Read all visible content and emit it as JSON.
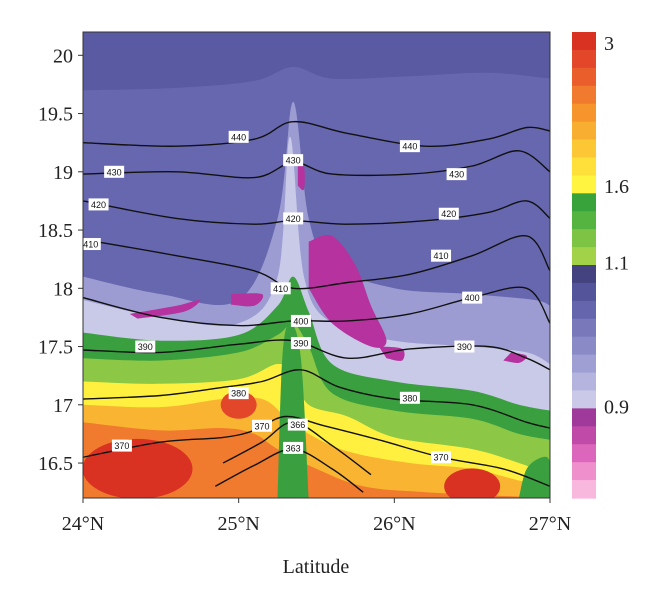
{
  "chart_data": {
    "type": "heatmap",
    "xlabel": "Latitude",
    "x_ticks": [
      "24°N",
      "25°N",
      "26°N",
      "27°N"
    ],
    "x_tick_values": [
      24,
      25,
      26,
      27
    ],
    "y_ticks": [
      "16.5",
      "17",
      "17.5",
      "18",
      "18.5",
      "19",
      "19.5",
      "20"
    ],
    "y_tick_values": [
      16.5,
      17,
      17.5,
      18,
      18.5,
      19,
      19.5,
      20
    ],
    "xlim": [
      24,
      27
    ],
    "ylim": [
      16.2,
      20.2
    ],
    "colorbar": {
      "tick_labels": [
        "3",
        "1.6",
        "1.1",
        "0.9"
      ],
      "tick_values": [
        3,
        1.6,
        1.1,
        0.9
      ],
      "bands": [
        "#d93223",
        "#e2472a",
        "#ea5e2c",
        "#f07a2d",
        "#f5952c",
        "#f8ae30",
        "#fbc734",
        "#ffe03a",
        "#fff43f",
        "#37a33a",
        "#55b33f",
        "#7ec444",
        "#a2d248",
        "#44437f",
        "#54549a",
        "#6565ad",
        "#7878bb",
        "#8a8ac7",
        "#9f9fd3",
        "#b4b4de",
        "#cacae8",
        "#a03a9a",
        "#c04aa8",
        "#dc66bb",
        "#ef8fcc",
        "#f8b8de"
      ]
    },
    "fill_levels": {
      "background": "#5a5aa3",
      "regions": [
        {
          "name": "upper-band",
          "color": "#6767b0"
        },
        {
          "name": "lavender-band",
          "color": "#9c9cd2"
        },
        {
          "name": "light-band",
          "color": "#c9c9e8"
        },
        {
          "name": "green-band",
          "color": "#3a9f3e"
        },
        {
          "name": "light-green-band",
          "color": "#8cc845"
        },
        {
          "name": "yellow-band",
          "color": "#fff040"
        },
        {
          "name": "orange-band",
          "color": "#f9b532"
        },
        {
          "name": "dark-orange-band",
          "color": "#f07a2d"
        },
        {
          "name": "red-core",
          "color": "#d93223"
        },
        {
          "name": "magenta-patch",
          "color": "#b6329e"
        }
      ]
    },
    "contours": [
      {
        "level": "440",
        "points": [
          [
            24,
            19.25
          ],
          [
            24.6,
            19.22
          ],
          [
            25.1,
            19.28
          ],
          [
            25.35,
            19.43
          ],
          [
            25.7,
            19.33
          ],
          [
            26.2,
            19.22
          ],
          [
            26.6,
            19.28
          ],
          [
            26.85,
            19.38
          ],
          [
            27,
            19.35
          ]
        ],
        "labels": [
          [
            25.0,
            19.3
          ],
          [
            26.1,
            19.22
          ]
        ]
      },
      {
        "level": "430",
        "points": [
          [
            24,
            18.98
          ],
          [
            24.6,
            19.0
          ],
          [
            25.1,
            18.95
          ],
          [
            25.35,
            19.08
          ],
          [
            25.6,
            18.98
          ],
          [
            26.1,
            18.98
          ],
          [
            26.5,
            19.05
          ],
          [
            26.8,
            19.18
          ],
          [
            27,
            19.0
          ]
        ],
        "labels": [
          [
            24.2,
            19.0
          ],
          [
            25.35,
            19.1
          ],
          [
            26.4,
            18.98
          ]
        ]
      },
      {
        "level": "420",
        "points": [
          [
            24,
            18.75
          ],
          [
            24.6,
            18.6
          ],
          [
            25.1,
            18.55
          ],
          [
            25.35,
            18.58
          ],
          [
            25.7,
            18.55
          ],
          [
            26.2,
            18.58
          ],
          [
            26.6,
            18.65
          ],
          [
            26.85,
            18.75
          ],
          [
            27,
            18.6
          ]
        ],
        "labels": [
          [
            24.1,
            18.72
          ],
          [
            25.35,
            18.6
          ],
          [
            26.35,
            18.64
          ]
        ]
      },
      {
        "level": "410",
        "points": [
          [
            24,
            18.42
          ],
          [
            24.6,
            18.28
          ],
          [
            25.1,
            18.15
          ],
          [
            25.35,
            18.0
          ],
          [
            25.7,
            18.05
          ],
          [
            26.1,
            18.12
          ],
          [
            26.5,
            18.28
          ],
          [
            26.85,
            18.45
          ],
          [
            27,
            18.15
          ]
        ],
        "labels": [
          [
            24.05,
            18.38
          ],
          [
            25.27,
            18.0
          ],
          [
            26.3,
            18.28
          ]
        ]
      },
      {
        "level": "400",
        "points": [
          [
            24,
            17.92
          ],
          [
            24.5,
            17.75
          ],
          [
            25.0,
            17.68
          ],
          [
            25.35,
            17.72
          ],
          [
            25.7,
            17.72
          ],
          [
            26.1,
            17.78
          ],
          [
            26.5,
            17.92
          ],
          [
            26.85,
            18.0
          ],
          [
            27,
            17.7
          ]
        ],
        "labels": [
          [
            25.4,
            17.72
          ],
          [
            26.5,
            17.92
          ]
        ]
      },
      {
        "level": "390",
        "points": [
          [
            24,
            17.47
          ],
          [
            24.5,
            17.45
          ],
          [
            25.0,
            17.52
          ],
          [
            25.35,
            17.55
          ],
          [
            25.7,
            17.4
          ],
          [
            26.1,
            17.48
          ],
          [
            26.6,
            17.5
          ],
          [
            26.85,
            17.4
          ],
          [
            27,
            17.3
          ]
        ],
        "labels": [
          [
            24.4,
            17.5
          ],
          [
            25.4,
            17.53
          ],
          [
            26.45,
            17.5
          ]
        ]
      },
      {
        "level": "380",
        "points": [
          [
            24,
            17.05
          ],
          [
            24.5,
            17.08
          ],
          [
            24.9,
            17.15
          ],
          [
            25.15,
            17.2
          ],
          [
            25.4,
            17.3
          ],
          [
            25.65,
            17.15
          ],
          [
            26.0,
            17.05
          ],
          [
            26.5,
            17.0
          ],
          [
            26.85,
            16.85
          ],
          [
            27,
            16.8
          ]
        ],
        "labels": [
          [
            25.0,
            17.1
          ],
          [
            26.1,
            17.06
          ]
        ]
      },
      {
        "level": "370",
        "points": [
          [
            24,
            16.55
          ],
          [
            24.5,
            16.68
          ],
          [
            24.9,
            16.72
          ],
          [
            25.1,
            16.78
          ],
          [
            25.3,
            16.9
          ],
          [
            25.55,
            16.82
          ],
          [
            25.9,
            16.7
          ],
          [
            26.3,
            16.55
          ],
          [
            26.7,
            16.45
          ],
          [
            27,
            16.3
          ]
        ],
        "labels": [
          [
            24.25,
            16.65
          ],
          [
            25.15,
            16.82
          ],
          [
            26.3,
            16.55
          ]
        ]
      },
      {
        "level": "366",
        "points": [
          [
            24.9,
            16.5
          ],
          [
            25.15,
            16.68
          ],
          [
            25.35,
            16.85
          ],
          [
            25.6,
            16.65
          ],
          [
            25.85,
            16.4
          ]
        ],
        "labels": [
          [
            25.38,
            16.83
          ]
        ]
      },
      {
        "level": "363",
        "points": [
          [
            24.85,
            16.3
          ],
          [
            25.1,
            16.48
          ],
          [
            25.35,
            16.62
          ],
          [
            25.6,
            16.45
          ],
          [
            25.8,
            16.25
          ]
        ],
        "labels": [
          [
            25.35,
            16.63
          ]
        ]
      }
    ]
  }
}
